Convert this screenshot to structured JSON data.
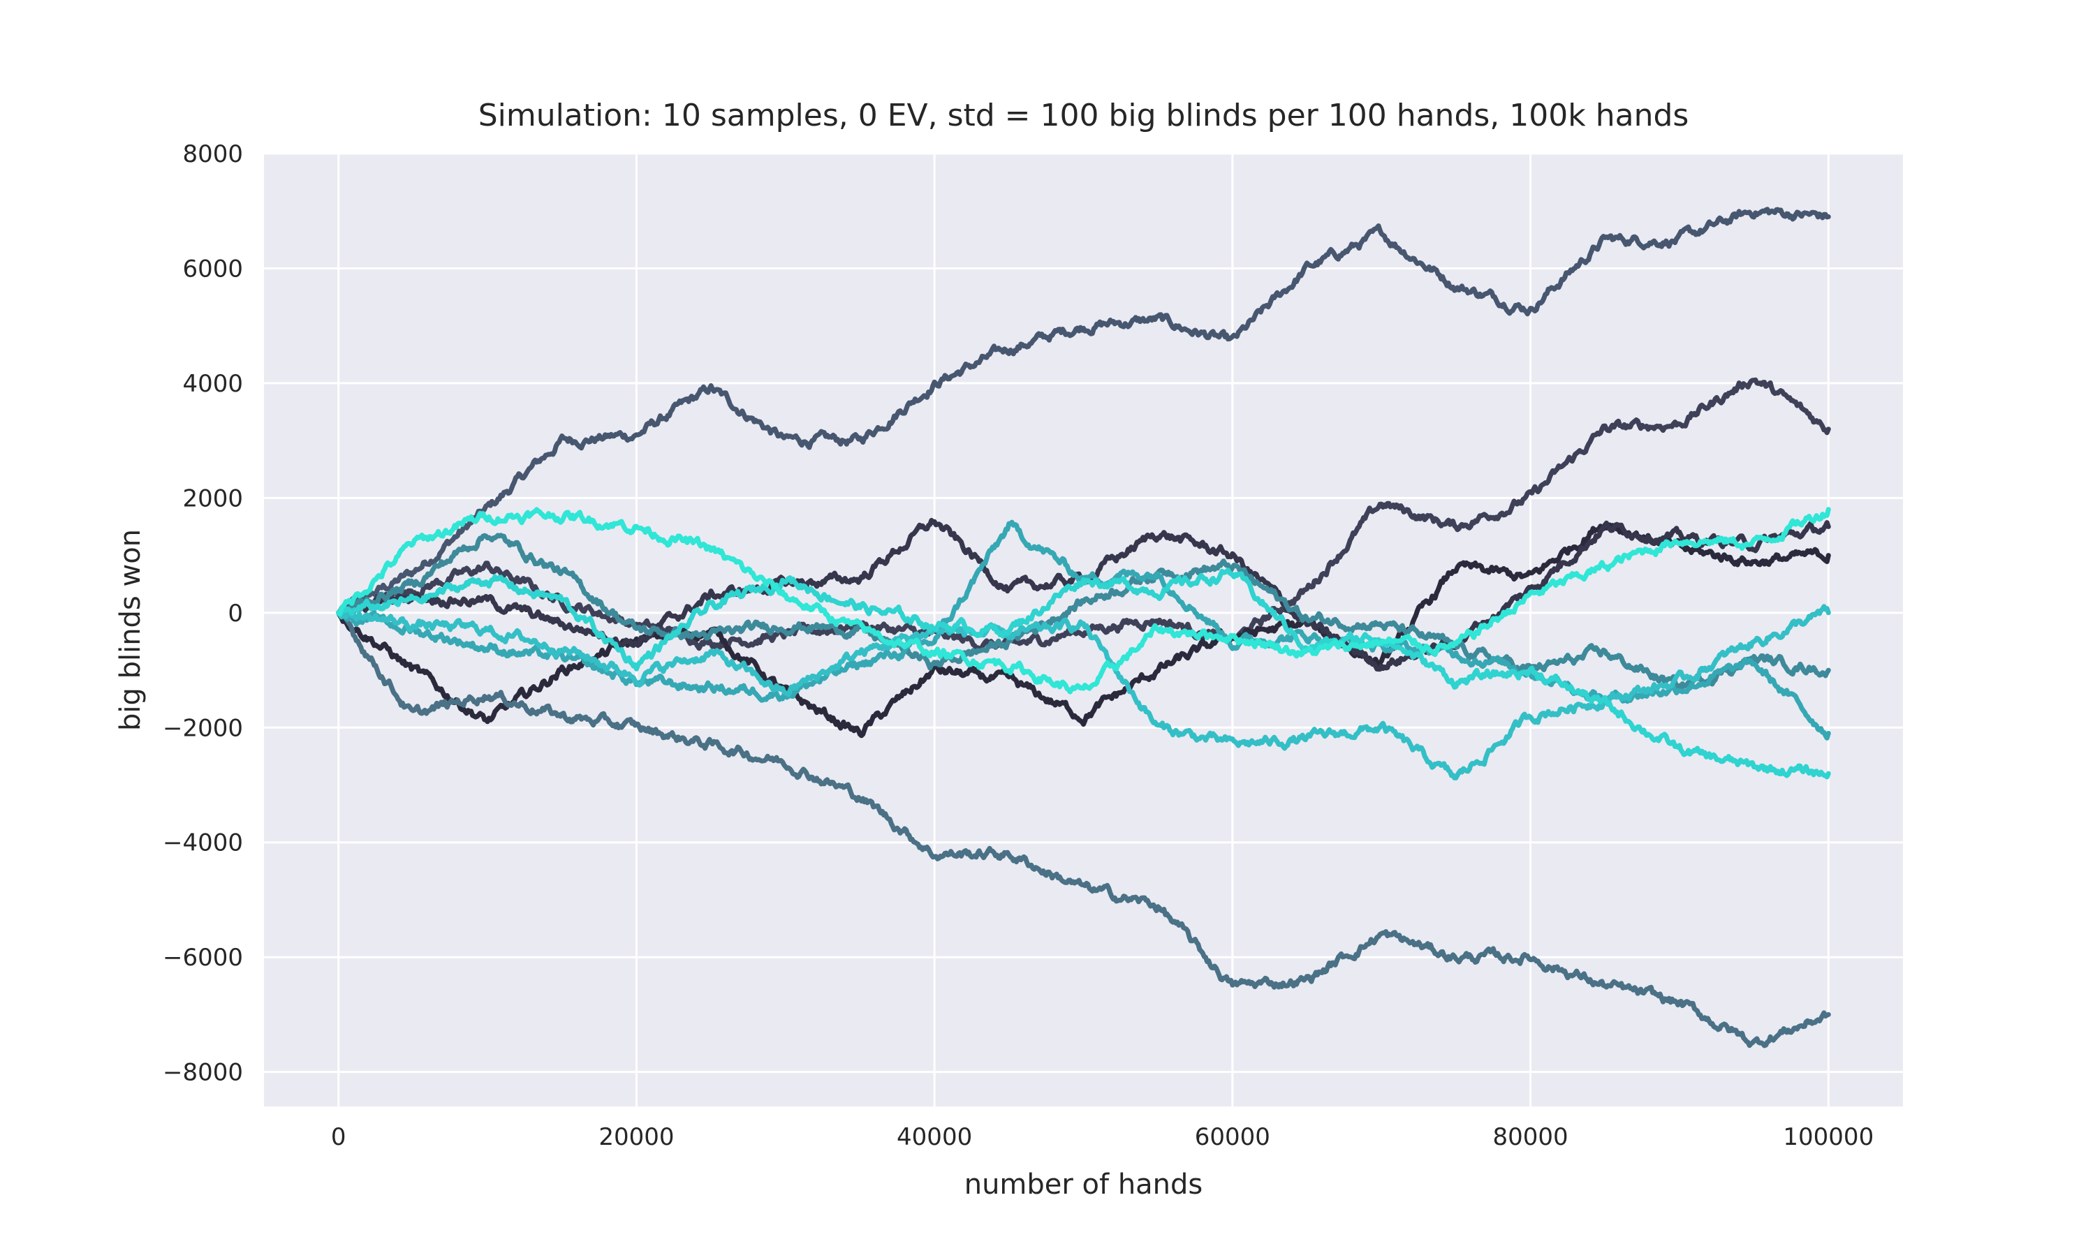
{
  "chart_data": {
    "type": "line",
    "title": "Simulation: 10 samples, 0 EV, std = 100 big blinds per 100 hands, 100k hands",
    "xlabel": "number of hands",
    "ylabel": "big blinds won",
    "xlim": [
      -5000,
      105000
    ],
    "ylim": [
      -8600,
      8000
    ],
    "xticks": [
      0,
      20000,
      40000,
      60000,
      80000,
      100000
    ],
    "xtick_labels": [
      "0",
      "20000",
      "40000",
      "60000",
      "80000",
      "100000"
    ],
    "yticks": [
      -8000,
      -6000,
      -4000,
      -2000,
      0,
      2000,
      4000,
      6000,
      8000
    ],
    "ytick_labels": [
      "−8000",
      "−6000",
      "−4000",
      "−2000",
      "0",
      "2000",
      "4000",
      "6000",
      "8000"
    ],
    "grid": true,
    "legend": "none",
    "colors": {
      "background": "#eaeaf2",
      "grid": "#ffffff",
      "series_dark": "#2b2a3d",
      "series_light": "#30e6d6"
    },
    "x": [
      0,
      5000,
      10000,
      15000,
      20000,
      25000,
      30000,
      35000,
      40000,
      45000,
      50000,
      55000,
      60000,
      65000,
      70000,
      75000,
      80000,
      85000,
      90000,
      95000,
      100000
    ],
    "series": [
      {
        "color": "#485770",
        "values": [
          0,
          700,
          1800,
          3000,
          3100,
          3900,
          3000,
          3000,
          4000,
          4600,
          5000,
          5100,
          4700,
          6000,
          6600,
          5700,
          5300,
          6500,
          6500,
          7000,
          6900
        ]
      },
      {
        "color": "#3e4158",
        "values": [
          0,
          400,
          800,
          200,
          -200,
          -500,
          -400,
          -200,
          -400,
          -600,
          -300,
          -100,
          -500,
          400,
          1900,
          1500,
          2000,
          3200,
          3300,
          4100,
          3200
        ]
      },
      {
        "color": "#2b2a3d",
        "values": [
          0,
          -1000,
          -1900,
          -1000,
          -500,
          -300,
          -1400,
          -2100,
          -1000,
          -1200,
          -1800,
          -1000,
          -400,
          -200,
          -900,
          800,
          600,
          1600,
          1100,
          900,
          1000
        ]
      },
      {
        "color": "#36364d",
        "values": [
          0,
          300,
          200,
          -200,
          -500,
          300,
          500,
          600,
          1600,
          400,
          600,
          1400,
          1000,
          -200,
          -900,
          -500,
          400,
          1500,
          1300,
          1200,
          1500
        ]
      },
      {
        "color": "#4a7186",
        "values": [
          0,
          -1800,
          -1400,
          -1800,
          -2000,
          -2300,
          -2600,
          -3200,
          -4200,
          -4200,
          -4800,
          -5100,
          -6500,
          -6400,
          -5600,
          -6000,
          -6000,
          -6500,
          -6800,
          -7500,
          -7000
        ]
      },
      {
        "color": "#3d8a9a",
        "values": [
          0,
          500,
          1400,
          700,
          -300,
          -400,
          -200,
          -300,
          -900,
          -500,
          200,
          700,
          800,
          -100,
          -200,
          -600,
          -1000,
          -700,
          -1300,
          -800,
          -1000
        ]
      },
      {
        "color": "#35a8b4",
        "values": [
          0,
          -300,
          -600,
          -800,
          -1200,
          -1300,
          -1400,
          -900,
          -500,
          1500,
          600,
          700,
          -500,
          -400,
          -600,
          -700,
          -1000,
          -1500,
          -1300,
          -900,
          -2100
        ]
      },
      {
        "color": "#34bfc6",
        "values": [
          0,
          -200,
          -300,
          -600,
          -1100,
          -700,
          -1400,
          -700,
          -300,
          -400,
          -200,
          -2000,
          -2300,
          -2200,
          -2000,
          -2900,
          -1800,
          -1500,
          -1200,
          -500,
          0
        ]
      },
      {
        "color": "#2fd3d0",
        "values": [
          0,
          200,
          600,
          200,
          -900,
          100,
          600,
          100,
          -200,
          -300,
          600,
          400,
          700,
          -600,
          -400,
          -1200,
          -1000,
          -1600,
          -2400,
          -2700,
          -2800
        ]
      },
      {
        "color": "#30e6d6",
        "values": [
          0,
          1200,
          1700,
          1700,
          1500,
          1100,
          300,
          -300,
          -700,
          -900,
          -1400,
          -300,
          -400,
          -700,
          -500,
          -600,
          300,
          800,
          1300,
          1200,
          1800
        ]
      }
    ]
  }
}
